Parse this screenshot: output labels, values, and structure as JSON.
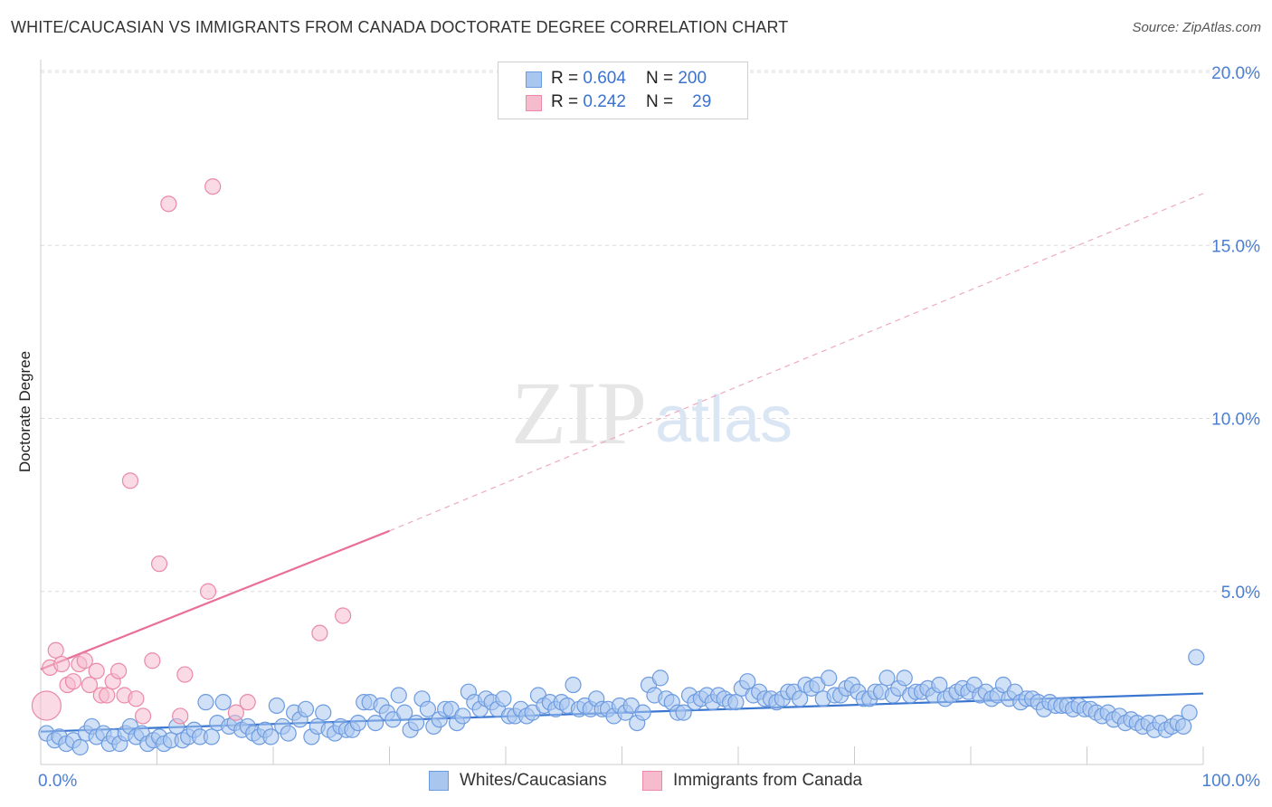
{
  "title": "WHITE/CAUCASIAN VS IMMIGRANTS FROM CANADA DOCTORATE DEGREE CORRELATION CHART",
  "source": "Source: ZipAtlas.com",
  "watermark": {
    "zip": "ZIP",
    "atlas": "atlas"
  },
  "legend": {
    "r1_label": "R =",
    "r1_value": "0.604",
    "n1_label": "N =",
    "n1_value": "200",
    "r2_label": "R =",
    "r2_value": "0.242",
    "n2_label": "N =",
    "n2_value": "29"
  },
  "bottom_legend": {
    "series1": "Whites/Caucasians",
    "series2": "Immigrants from Canada"
  },
  "colors": {
    "blue_fill": "#a9c6ef",
    "blue_stroke": "#6d9be0",
    "blue_line": "#3a76d0",
    "pink_fill": "#f6bccd",
    "pink_stroke": "#ea8aa8",
    "pink_line": "#e96f98"
  },
  "chart_data": {
    "type": "scatter",
    "title": "WHITE/CAUCASIAN VS IMMIGRANTS FROM CANADA DOCTORATE DEGREE CORRELATION CHART",
    "xlabel": "",
    "ylabel": "Doctorate Degree",
    "xlim": [
      0,
      100
    ],
    "ylim": [
      0,
      20
    ],
    "x_tick_labels": [
      "0.0%",
      "100.0%"
    ],
    "y_ticks": [
      5,
      10,
      15,
      20
    ],
    "y_tick_labels": [
      "5.0%",
      "10.0%",
      "15.0%",
      "20.0%"
    ],
    "grid": true,
    "legend_position": "top-center",
    "series": [
      {
        "name": "Whites/Caucasians",
        "r": 0.604,
        "n": 200,
        "trend": {
          "x": [
            0,
            100
          ],
          "y": [
            0.95,
            2.05
          ]
        },
        "points": [
          [
            0.5,
            0.9
          ],
          [
            1.2,
            0.7
          ],
          [
            1.6,
            0.8
          ],
          [
            2.2,
            0.6
          ],
          [
            2.8,
            0.7
          ],
          [
            3.4,
            0.5
          ],
          [
            3.9,
            0.9
          ],
          [
            4.4,
            1.1
          ],
          [
            4.8,
            0.8
          ],
          [
            5.4,
            0.9
          ],
          [
            5.9,
            0.6
          ],
          [
            6.3,
            0.8
          ],
          [
            6.8,
            0.6
          ],
          [
            7.3,
            0.9
          ],
          [
            7.7,
            1.1
          ],
          [
            8.2,
            0.8
          ],
          [
            8.7,
            0.9
          ],
          [
            9.2,
            0.6
          ],
          [
            9.7,
            0.7
          ],
          [
            10.2,
            0.8
          ],
          [
            10.6,
            0.6
          ],
          [
            11.2,
            0.7
          ],
          [
            11.7,
            1.1
          ],
          [
            12.2,
            0.7
          ],
          [
            12.7,
            0.8
          ],
          [
            13.2,
            1.0
          ],
          [
            13.7,
            0.8
          ],
          [
            14.2,
            1.8
          ],
          [
            14.7,
            0.8
          ],
          [
            15.2,
            1.2
          ],
          [
            15.7,
            1.8
          ],
          [
            16.2,
            1.1
          ],
          [
            16.7,
            1.2
          ],
          [
            17.3,
            1.0
          ],
          [
            17.8,
            1.1
          ],
          [
            18.3,
            0.9
          ],
          [
            18.8,
            0.8
          ],
          [
            19.3,
            1.0
          ],
          [
            19.8,
            0.8
          ],
          [
            20.3,
            1.7
          ],
          [
            20.8,
            1.1
          ],
          [
            21.3,
            0.9
          ],
          [
            21.8,
            1.5
          ],
          [
            22.3,
            1.3
          ],
          [
            22.8,
            1.6
          ],
          [
            23.3,
            0.8
          ],
          [
            23.8,
            1.1
          ],
          [
            24.3,
            1.5
          ],
          [
            24.8,
            1.0
          ],
          [
            25.3,
            0.9
          ],
          [
            25.8,
            1.1
          ],
          [
            26.3,
            1.0
          ],
          [
            26.8,
            1.0
          ],
          [
            27.3,
            1.2
          ],
          [
            27.8,
            1.8
          ],
          [
            28.3,
            1.8
          ],
          [
            28.8,
            1.2
          ],
          [
            29.3,
            1.7
          ],
          [
            29.8,
            1.5
          ],
          [
            30.3,
            1.3
          ],
          [
            30.8,
            2.0
          ],
          [
            31.3,
            1.5
          ],
          [
            31.8,
            1.0
          ],
          [
            32.3,
            1.2
          ],
          [
            32.8,
            1.9
          ],
          [
            33.3,
            1.6
          ],
          [
            33.8,
            1.1
          ],
          [
            34.3,
            1.3
          ],
          [
            34.8,
            1.6
          ],
          [
            35.3,
            1.6
          ],
          [
            35.8,
            1.2
          ],
          [
            36.3,
            1.4
          ],
          [
            36.8,
            2.1
          ],
          [
            37.3,
            1.8
          ],
          [
            37.8,
            1.6
          ],
          [
            38.3,
            1.9
          ],
          [
            38.8,
            1.8
          ],
          [
            39.3,
            1.6
          ],
          [
            39.8,
            1.9
          ],
          [
            40.3,
            1.4
          ],
          [
            40.8,
            1.4
          ],
          [
            41.3,
            1.6
          ],
          [
            41.8,
            1.4
          ],
          [
            42.3,
            1.5
          ],
          [
            42.8,
            2.0
          ],
          [
            43.3,
            1.7
          ],
          [
            43.8,
            1.8
          ],
          [
            44.3,
            1.6
          ],
          [
            44.8,
            1.8
          ],
          [
            45.3,
            1.7
          ],
          [
            45.8,
            2.3
          ],
          [
            46.3,
            1.6
          ],
          [
            46.8,
            1.7
          ],
          [
            47.3,
            1.6
          ],
          [
            47.8,
            1.9
          ],
          [
            48.3,
            1.6
          ],
          [
            48.8,
            1.6
          ],
          [
            49.3,
            1.4
          ],
          [
            49.8,
            1.7
          ],
          [
            50.3,
            1.5
          ],
          [
            50.8,
            1.7
          ],
          [
            51.3,
            1.2
          ],
          [
            51.8,
            1.5
          ],
          [
            52.3,
            2.3
          ],
          [
            52.8,
            2.0
          ],
          [
            53.3,
            2.5
          ],
          [
            53.8,
            1.9
          ],
          [
            54.3,
            1.8
          ],
          [
            54.8,
            1.5
          ],
          [
            55.3,
            1.5
          ],
          [
            55.8,
            2.0
          ],
          [
            56.3,
            1.8
          ],
          [
            56.8,
            1.9
          ],
          [
            57.3,
            2.0
          ],
          [
            57.8,
            1.8
          ],
          [
            58.3,
            2.0
          ],
          [
            58.8,
            1.9
          ],
          [
            59.3,
            1.8
          ],
          [
            59.8,
            1.8
          ],
          [
            60.3,
            2.2
          ],
          [
            60.8,
            2.4
          ],
          [
            61.3,
            2.0
          ],
          [
            61.8,
            2.1
          ],
          [
            62.3,
            1.9
          ],
          [
            62.8,
            1.9
          ],
          [
            63.3,
            1.8
          ],
          [
            63.8,
            1.9
          ],
          [
            64.3,
            2.1
          ],
          [
            64.8,
            2.1
          ],
          [
            65.3,
            1.9
          ],
          [
            65.8,
            2.3
          ],
          [
            66.3,
            2.2
          ],
          [
            66.8,
            2.3
          ],
          [
            67.3,
            1.9
          ],
          [
            67.8,
            2.5
          ],
          [
            68.3,
            2.0
          ],
          [
            68.8,
            2.0
          ],
          [
            69.3,
            2.2
          ],
          [
            69.8,
            2.3
          ],
          [
            70.3,
            2.1
          ],
          [
            70.8,
            1.9
          ],
          [
            71.3,
            1.9
          ],
          [
            71.8,
            2.1
          ],
          [
            72.3,
            2.1
          ],
          [
            72.8,
            2.5
          ],
          [
            73.3,
            2.0
          ],
          [
            73.8,
            2.2
          ],
          [
            74.3,
            2.5
          ],
          [
            74.8,
            2.0
          ],
          [
            75.3,
            2.1
          ],
          [
            75.8,
            2.1
          ],
          [
            76.3,
            2.2
          ],
          [
            76.8,
            2.0
          ],
          [
            77.3,
            2.3
          ],
          [
            77.8,
            1.9
          ],
          [
            78.3,
            2.0
          ],
          [
            78.8,
            2.1
          ],
          [
            79.3,
            2.2
          ],
          [
            79.8,
            2.1
          ],
          [
            80.3,
            2.3
          ],
          [
            80.8,
            2.0
          ],
          [
            81.3,
            2.1
          ],
          [
            81.8,
            1.9
          ],
          [
            82.3,
            2.0
          ],
          [
            82.8,
            2.3
          ],
          [
            83.3,
            1.9
          ],
          [
            83.8,
            2.1
          ],
          [
            84.3,
            1.8
          ],
          [
            84.8,
            1.9
          ],
          [
            85.3,
            1.9
          ],
          [
            85.8,
            1.8
          ],
          [
            86.3,
            1.6
          ],
          [
            86.8,
            1.8
          ],
          [
            87.3,
            1.7
          ],
          [
            87.8,
            1.7
          ],
          [
            88.3,
            1.7
          ],
          [
            88.8,
            1.6
          ],
          [
            89.3,
            1.7
          ],
          [
            89.8,
            1.6
          ],
          [
            90.3,
            1.6
          ],
          [
            90.8,
            1.5
          ],
          [
            91.3,
            1.4
          ],
          [
            91.8,
            1.5
          ],
          [
            92.3,
            1.3
          ],
          [
            92.8,
            1.4
          ],
          [
            93.3,
            1.2
          ],
          [
            93.8,
            1.3
          ],
          [
            94.3,
            1.2
          ],
          [
            94.8,
            1.1
          ],
          [
            95.3,
            1.2
          ],
          [
            95.8,
            1.0
          ],
          [
            96.3,
            1.2
          ],
          [
            96.8,
            1.0
          ],
          [
            97.3,
            1.1
          ],
          [
            97.8,
            1.2
          ],
          [
            98.3,
            1.1
          ],
          [
            98.8,
            1.5
          ],
          [
            99.4,
            3.1
          ]
        ]
      },
      {
        "name": "Immigrants from Canada",
        "r": 0.242,
        "n": 29,
        "trend": {
          "x": [
            0,
            30
          ],
          "y": [
            2.75,
            6.75
          ]
        },
        "trend_extended": {
          "x": [
            30,
            100
          ],
          "y": [
            6.75,
            16.5
          ]
        },
        "points": [
          [
            0.5,
            1.7
          ],
          [
            0.8,
            2.8
          ],
          [
            1.3,
            3.3
          ],
          [
            1.8,
            2.9
          ],
          [
            2.3,
            2.3
          ],
          [
            2.8,
            2.4
          ],
          [
            3.3,
            2.9
          ],
          [
            3.8,
            3.0
          ],
          [
            4.2,
            2.3
          ],
          [
            4.8,
            2.7
          ],
          [
            5.2,
            2.0
          ],
          [
            5.7,
            2.0
          ],
          [
            6.2,
            2.4
          ],
          [
            6.7,
            2.7
          ],
          [
            7.2,
            2.0
          ],
          [
            7.7,
            8.2
          ],
          [
            8.2,
            1.9
          ],
          [
            8.8,
            1.4
          ],
          [
            9.6,
            3.0
          ],
          [
            10.2,
            5.8
          ],
          [
            11.0,
            16.2
          ],
          [
            12.0,
            1.4
          ],
          [
            12.4,
            2.6
          ],
          [
            14.4,
            5.0
          ],
          [
            14.8,
            16.7
          ],
          [
            16.8,
            1.5
          ],
          [
            17.8,
            1.8
          ],
          [
            24.0,
            3.8
          ],
          [
            26.0,
            4.3
          ]
        ]
      }
    ]
  }
}
